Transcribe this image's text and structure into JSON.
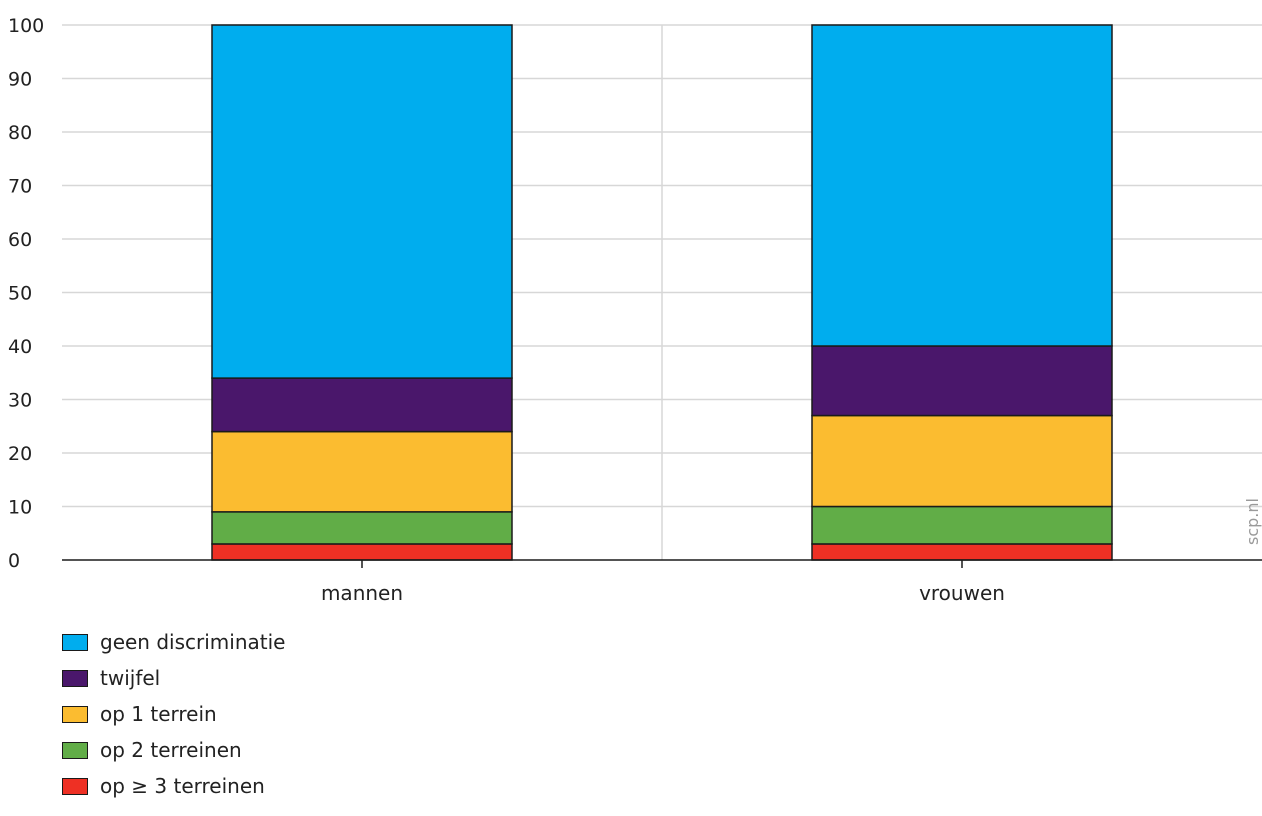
{
  "chart_data": {
    "type": "bar",
    "stacked": true,
    "categories": [
      "mannen",
      "vrouwen"
    ],
    "series": [
      {
        "name": "op ≥ 3 terreinen",
        "color": "#ee3024",
        "values": [
          3,
          3
        ]
      },
      {
        "name": "op 2 terreinen",
        "color": "#61ad47",
        "values": [
          6,
          7
        ]
      },
      {
        "name": "op 1 terrein",
        "color": "#fbbc30",
        "values": [
          15,
          17
        ]
      },
      {
        "name": "twijfel",
        "color": "#4a176b",
        "values": [
          10,
          13
        ]
      },
      {
        "name": "geen discriminatie",
        "color": "#00adee",
        "values": [
          66,
          60
        ]
      }
    ],
    "ylim": [
      0,
      100
    ],
    "yticks": [
      "0",
      "10",
      "20",
      "30",
      "40",
      "50",
      "60",
      "70",
      "80",
      "90",
      "100"
    ],
    "grid": true,
    "legend_position": "bottom-left",
    "watermark": "scp.nl"
  },
  "legend": {
    "items": [
      {
        "label": "geen discriminatie",
        "color": "#00adee"
      },
      {
        "label": "twijfel",
        "color": "#4a176b"
      },
      {
        "label": "op 1 terrein",
        "color": "#fbbc30"
      },
      {
        "label": "op 2 terreinen",
        "color": "#61ad47"
      },
      {
        "label": "op ≥ 3 terreinen",
        "color": "#ee3024"
      }
    ]
  }
}
